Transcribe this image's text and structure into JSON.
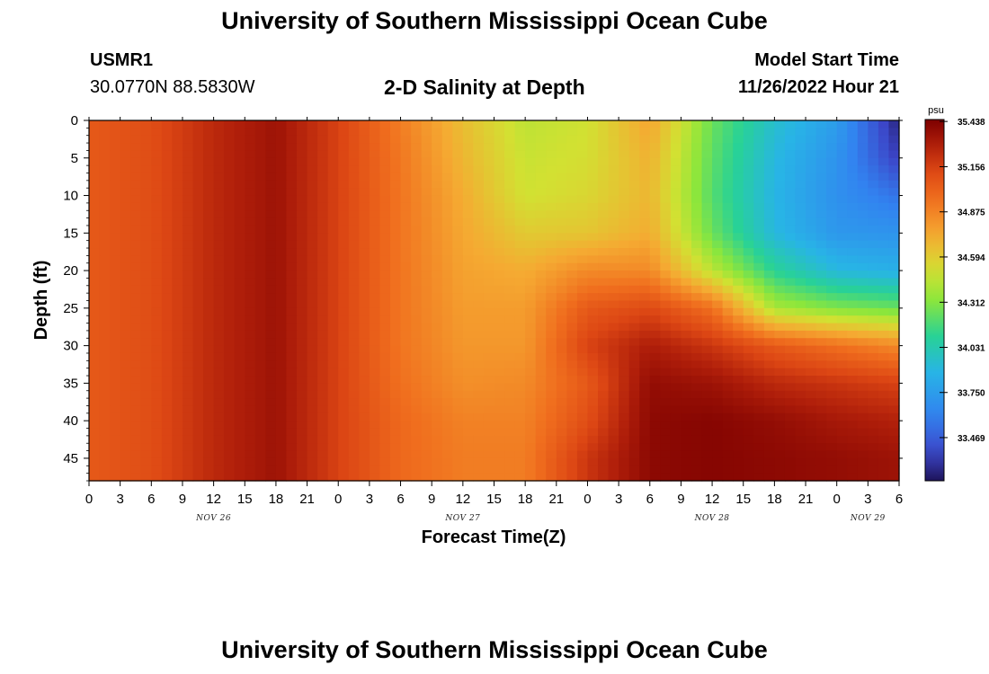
{
  "header": {
    "title": "University of Southern Mississippi Ocean Cube",
    "station_id": "USMR1",
    "coords": "30.0770N  88.5830W",
    "plot_title": "2-D Salinity at Depth",
    "model_start_label": "Model Start Time",
    "model_start_value": "11/26/2022 Hour 21"
  },
  "footer": {
    "title": "University of Southern Mississippi Ocean Cube"
  },
  "chart_data": {
    "type": "heatmap",
    "title": "2-D Salinity at Depth",
    "xlabel": "Forecast Time(Z)",
    "ylabel": "Depth (ft)",
    "colorbar_unit": "psu",
    "x_hours": [
      0,
      3,
      6,
      9,
      12,
      15,
      18,
      21,
      24,
      27,
      30,
      33,
      36,
      39,
      42,
      45,
      48,
      51,
      54,
      57,
      60,
      63,
      66,
      69,
      72,
      75,
      78
    ],
    "x_tick_labels": [
      "0",
      "3",
      "6",
      "9",
      "12",
      "15",
      "18",
      "21",
      "0",
      "3",
      "6",
      "9",
      "12",
      "15",
      "18",
      "21",
      "0",
      "3",
      "6",
      "9",
      "12",
      "15",
      "18",
      "21",
      "0",
      "3",
      "6"
    ],
    "x_date_labels": [
      {
        "label": "NOV 26",
        "hour": 12
      },
      {
        "label": "NOV 27",
        "hour": 36
      },
      {
        "label": "NOV 28",
        "hour": 60
      },
      {
        "label": "NOV 29",
        "hour": 75
      }
    ],
    "xlim": [
      0,
      78
    ],
    "y_ticks": [
      0,
      5,
      10,
      15,
      20,
      25,
      30,
      35,
      40,
      45
    ],
    "ylim": [
      0,
      48
    ],
    "colorbar_ticks": [
      "35.438",
      "35.156",
      "34.875",
      "34.594",
      "34.312",
      "34.031",
      "33.750",
      "33.469"
    ],
    "value_range": [
      33.2,
      35.45
    ],
    "depths": [
      0,
      5,
      10,
      15,
      20,
      25,
      30,
      35,
      40,
      45
    ],
    "grid_hours": [
      0,
      6,
      12,
      18,
      24,
      30,
      36,
      42,
      48,
      54,
      60,
      66,
      72,
      78
    ],
    "salinity": [
      [
        35.05,
        35.1,
        35.25,
        35.35,
        35.15,
        34.9,
        34.65,
        34.45,
        34.5,
        34.75,
        34.25,
        33.95,
        33.75,
        33.25
      ],
      [
        35.05,
        35.1,
        35.25,
        35.35,
        35.15,
        34.92,
        34.68,
        34.48,
        34.52,
        34.7,
        34.22,
        33.9,
        33.7,
        33.35
      ],
      [
        35.05,
        35.1,
        35.25,
        35.35,
        35.15,
        34.93,
        34.72,
        34.5,
        34.55,
        34.68,
        34.2,
        33.88,
        33.68,
        33.55
      ],
      [
        35.05,
        35.1,
        35.25,
        35.35,
        35.15,
        34.93,
        34.74,
        34.6,
        34.62,
        34.72,
        34.25,
        33.9,
        33.72,
        33.7
      ],
      [
        35.05,
        35.1,
        35.25,
        35.35,
        35.15,
        34.93,
        34.76,
        34.72,
        34.85,
        34.85,
        34.45,
        34.1,
        33.9,
        33.85
      ],
      [
        35.05,
        35.1,
        35.25,
        35.35,
        35.15,
        34.93,
        34.78,
        34.78,
        35.05,
        35.12,
        34.95,
        34.4,
        34.3,
        34.25
      ],
      [
        35.05,
        35.1,
        35.25,
        35.35,
        35.15,
        34.93,
        34.8,
        34.8,
        35.15,
        35.3,
        35.2,
        35.05,
        34.95,
        34.85
      ],
      [
        35.05,
        35.1,
        35.25,
        35.35,
        35.15,
        34.95,
        34.83,
        34.85,
        35.05,
        35.38,
        35.35,
        35.25,
        35.2,
        35.15
      ],
      [
        35.05,
        35.1,
        35.25,
        35.35,
        35.15,
        34.98,
        34.88,
        34.88,
        35.1,
        35.4,
        35.42,
        35.38,
        35.32,
        35.28
      ],
      [
        35.05,
        35.1,
        35.25,
        35.35,
        35.15,
        34.98,
        34.9,
        34.9,
        35.2,
        35.4,
        35.42,
        35.4,
        35.38,
        35.35
      ]
    ]
  }
}
